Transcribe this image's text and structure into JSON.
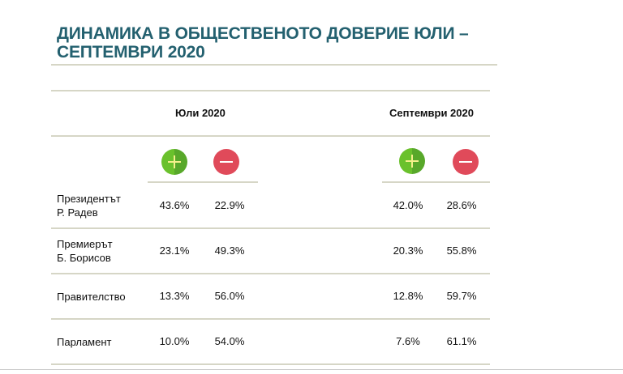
{
  "title": "ДИНАМИКА В ОБЩЕСТВЕНОТО ДОВЕРИЕ ЮЛИ – СЕПТЕМВРИ 2020",
  "columns": {
    "july": "Юли 2020",
    "september": "Септември 2020"
  },
  "icons": {
    "positive": "plus-circle-icon",
    "negative": "minus-circle-icon",
    "positive_color": "#6ac12c",
    "negative_color": "#e04a5a"
  },
  "rows": [
    {
      "label1": "Президентът",
      "label2": "Р. Радев",
      "jul_pos": "43.6%",
      "jul_neg": "22.9%",
      "sep_pos": "42.0%",
      "sep_neg": "28.6%"
    },
    {
      "label1": "Премиерът",
      "label2": "Б. Борисов",
      "jul_pos": "23.1%",
      "jul_neg": "49.3%",
      "sep_pos": "20.3%",
      "sep_neg": "55.8%"
    },
    {
      "label1": "Правителство",
      "label2": "",
      "jul_pos": "13.3%",
      "jul_neg": "56.0%",
      "sep_pos": "12.8%",
      "sep_neg": "59.7%"
    },
    {
      "label1": "Парламент",
      "label2": "",
      "jul_pos": "10.0%",
      "jul_neg": "54.0%",
      "sep_pos": "7.6%",
      "sep_neg": "61.1%"
    }
  ]
}
